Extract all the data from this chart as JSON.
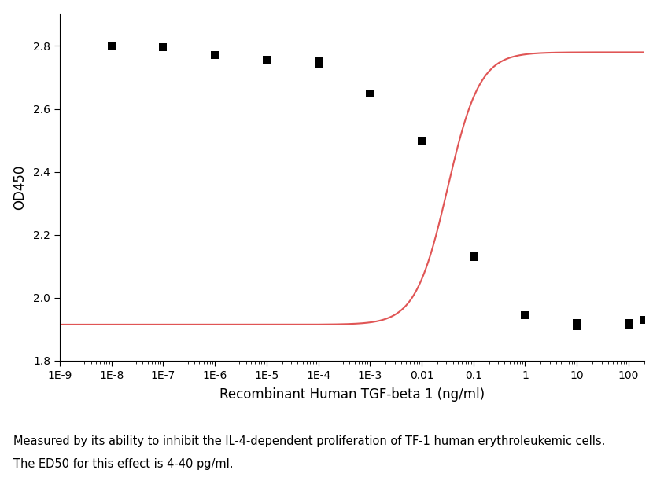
{
  "scatter_x": [
    1e-08,
    1e-08,
    1e-07,
    1e-07,
    1e-06,
    1e-05,
    0.0001,
    0.0001,
    0.001,
    0.01,
    0.1,
    0.1,
    1,
    10,
    10,
    100,
    100,
    200
  ],
  "scatter_y": [
    2.8,
    2.8,
    2.795,
    2.795,
    2.77,
    2.755,
    2.75,
    2.74,
    2.65,
    2.5,
    2.135,
    2.13,
    1.945,
    1.92,
    1.91,
    1.92,
    1.915,
    1.93
  ],
  "scatter_color": "#000000",
  "scatter_marker": "s",
  "scatter_size": 45,
  "curve_color": "#e05555",
  "xlabel": "Recombinant Human TGF-beta 1 (ng/ml)",
  "ylabel": "OD450",
  "ylim": [
    1.8,
    2.9
  ],
  "yticks": [
    1.8,
    2.0,
    2.2,
    2.4,
    2.6,
    2.8
  ],
  "xtick_labels": [
    "1E-9",
    "1E-8",
    "1E-7",
    "1E-6",
    "1E-5",
    "1E-4",
    "1E-3",
    "0.01",
    "0.1",
    "1",
    "10",
    "100"
  ],
  "xtick_values": [
    1e-09,
    1e-08,
    1e-07,
    1e-06,
    1e-05,
    0.0001,
    0.001,
    0.01,
    0.1,
    1,
    10,
    100
  ],
  "caption_line1": "Measured by its ability to inhibit the IL-4-dependent proliferation of TF-1 human erythroleukemic cells.",
  "caption_line2": "The ED50 for this effect is 4-40 pg/ml.",
  "caption_fontsize": 10.5,
  "axis_label_fontsize": 12,
  "tick_label_fontsize": 10,
  "background_color": "#ffffff",
  "top_max": 2.78,
  "bottom_min": 1.915,
  "ec50_log": -1.5,
  "hill": 1.4,
  "xmin": 1e-09,
  "xmax": 200
}
